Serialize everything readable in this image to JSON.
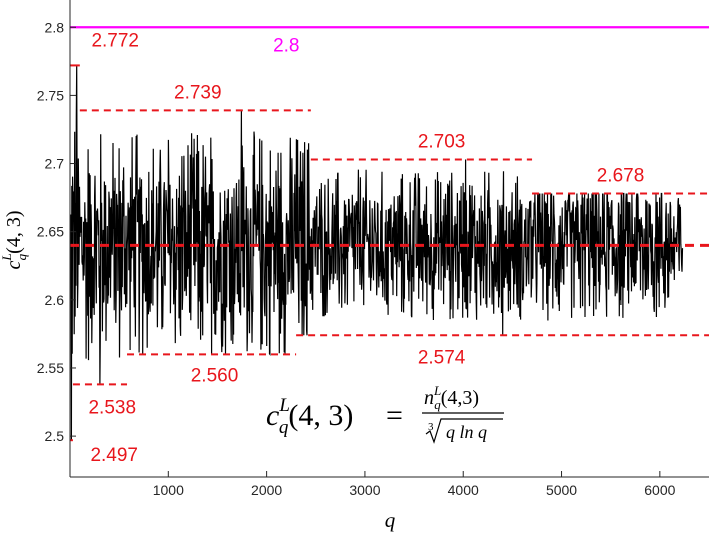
{
  "chart_data": {
    "type": "line",
    "xlabel": "q",
    "ylabel_main": "c",
    "ylabel_sup": "L",
    "ylabel_sub": "q",
    "ylabel_args": "(4, 3)",
    "xlim": [
      0,
      6500
    ],
    "ylim": [
      2.47,
      2.82
    ],
    "xticks": [
      1000,
      2000,
      3000,
      4000,
      5000,
      6000
    ],
    "xtick_labels": [
      "1000",
      "2000",
      "3000",
      "4000",
      "5000",
      "6000"
    ],
    "yticks": [
      2.5,
      2.55,
      2.6,
      2.65,
      2.7,
      2.75,
      2.8
    ],
    "ytick_labels": [
      "2.5",
      "2.55",
      "2.6",
      "2.65",
      "2.7",
      "2.75",
      "2.8"
    ],
    "series_x_range": [
      10,
      6230
    ],
    "series_mean": 2.64,
    "series_spread": 0.035,
    "upper_envelope": [
      {
        "x0": 0,
        "x1": 100,
        "y": 2.772,
        "label": "2.772"
      },
      {
        "x0": 100,
        "x1": 2450,
        "y": 2.739,
        "label": "2.739"
      },
      {
        "x0": 2450,
        "x1": 4700,
        "y": 2.703,
        "label": "2.703"
      },
      {
        "x0": 4700,
        "x1": 6500,
        "y": 2.678,
        "label": "2.678"
      }
    ],
    "lower_envelope": [
      {
        "x0": 0,
        "x1": 30,
        "y": 2.497,
        "label": "2.497"
      },
      {
        "x0": 30,
        "x1": 580,
        "y": 2.538,
        "label": "2.538"
      },
      {
        "x0": 580,
        "x1": 2300,
        "y": 2.56,
        "label": "2.560"
      },
      {
        "x0": 2300,
        "x1": 6500,
        "y": 2.574,
        "label": "2.574"
      }
    ],
    "mean_line": {
      "y": 2.64
    },
    "bound_line": {
      "y": 2.8,
      "label": "2.8",
      "color": "#ff00ff"
    },
    "colors": {
      "series": "#000000",
      "envelope": "#e8161c",
      "bound": "#ff00ff",
      "axis": "#262626"
    },
    "formula": {
      "lhs_main": "c",
      "lhs_sup": "L",
      "lhs_sub": "q",
      "lhs_args": "(4, 3)",
      "equals": "=",
      "num_main": "n",
      "num_sup": "L",
      "num_sub": "q",
      "num_args": "(4,3)",
      "den_root_index": "3",
      "den_radicand": "q ln q"
    }
  }
}
